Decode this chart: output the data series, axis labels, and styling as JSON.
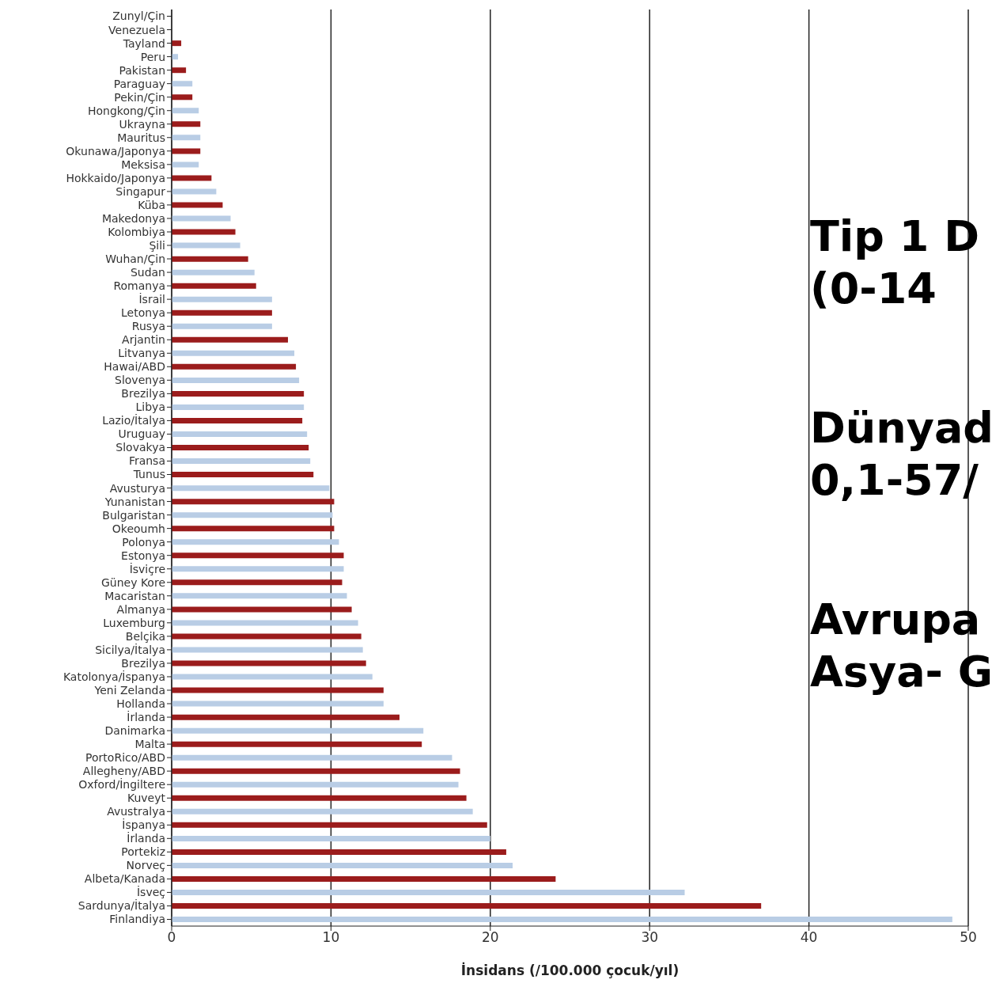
{
  "chart_data": {
    "type": "bar",
    "orientation": "horizontal",
    "xlabel": "İnsidans (/100.000 çocuk/yıl)",
    "categories": [
      "Zunyl/Çin",
      "Venezuela",
      "Tayland",
      "Peru",
      "Pakistan",
      "Paraguay",
      "Pekin/Çin",
      "Hongkong/Çin",
      "Ukrayna",
      "Mauritus",
      "Okunawa/Japonya",
      "Meksisa",
      "Hokkaido/Japonya",
      "Singapur",
      "Küba",
      "Makedonya",
      "Kolombiya",
      "Şili",
      "Wuhan/Çin",
      "Sudan",
      "Romanya",
      "İsrail",
      "Letonya",
      "Rusya",
      "Arjantin",
      "Litvanya",
      "Hawai/ABD",
      "Slovenya",
      "Brezilya",
      "Libya",
      "Lazio/İtalya",
      "Uruguay",
      "Slovakya",
      "Fransa",
      "Tunus",
      "Avusturya",
      "Yunanistan",
      "Bulgaristan",
      "Okeoumh",
      "Polonya",
      "Estonya",
      "İsviçre",
      "Güney Kore",
      "Macaristan",
      "Almanya",
      "Luxemburg",
      "Belçika",
      "Sicilya/İtalya",
      "Brezilya",
      "Katolonya/İspanya",
      "Yeni Zelanda",
      "Hollanda",
      "İrlanda",
      "Danimarka",
      "Malta",
      "PortoRico/ABD",
      "Allegheny/ABD",
      "Oxford/İngiltere",
      "Kuveyt",
      "Avustralya",
      "İspanya",
      "İrlanda",
      "Portekiz",
      "Norveç",
      "Albeta/Kanada",
      "İsveç",
      "Sardunya/İtalya",
      "Finlandiya"
    ],
    "values": [
      0,
      0,
      0.6,
      0.4,
      0.9,
      1.3,
      1.3,
      1.7,
      1.8,
      1.8,
      1.8,
      1.7,
      2.5,
      2.8,
      3.2,
      3.7,
      4.0,
      4.3,
      4.8,
      5.2,
      5.3,
      6.3,
      6.3,
      6.3,
      7.3,
      7.7,
      7.8,
      8.0,
      8.3,
      8.3,
      8.2,
      8.5,
      8.6,
      8.7,
      8.9,
      9.9,
      10.2,
      10.1,
      10.2,
      10.5,
      10.8,
      10.8,
      10.7,
      11.0,
      11.3,
      11.7,
      11.9,
      12.0,
      12.2,
      12.6,
      13.3,
      13.3,
      14.3,
      15.8,
      15.7,
      17.6,
      18.1,
      18.0,
      18.5,
      18.9,
      19.8,
      20.0,
      21.0,
      21.4,
      24.1,
      32.2,
      37.0,
      49.0
    ],
    "colors": [
      "#9b1c1c",
      "#b9cde5",
      "#9b1c1c",
      "#b9cde5",
      "#9b1c1c",
      "#b9cde5",
      "#9b1c1c",
      "#b9cde5",
      "#9b1c1c",
      "#b9cde5",
      "#9b1c1c",
      "#b9cde5",
      "#9b1c1c",
      "#b9cde5",
      "#9b1c1c",
      "#b9cde5",
      "#9b1c1c",
      "#b9cde5",
      "#9b1c1c",
      "#b9cde5",
      "#9b1c1c",
      "#b9cde5",
      "#9b1c1c",
      "#b9cde5",
      "#9b1c1c",
      "#b9cde5",
      "#9b1c1c",
      "#b9cde5",
      "#9b1c1c",
      "#b9cde5",
      "#9b1c1c",
      "#b9cde5",
      "#9b1c1c",
      "#b9cde5",
      "#9b1c1c",
      "#b9cde5",
      "#9b1c1c",
      "#b9cde5",
      "#9b1c1c",
      "#b9cde5",
      "#9b1c1c",
      "#b9cde5",
      "#9b1c1c",
      "#b9cde5",
      "#9b1c1c",
      "#b9cde5",
      "#9b1c1c",
      "#b9cde5",
      "#9b1c1c",
      "#b9cde5",
      "#9b1c1c",
      "#b9cde5",
      "#9b1c1c",
      "#b9cde5",
      "#9b1c1c",
      "#b9cde5",
      "#9b1c1c",
      "#b9cde5",
      "#9b1c1c",
      "#b9cde5",
      "#9b1c1c",
      "#b9cde5",
      "#9b1c1c",
      "#b9cde5",
      "#9b1c1c",
      "#b9cde5",
      "#9b1c1c",
      "#b9cde5"
    ],
    "xlim": [
      0,
      50
    ],
    "xticks": [
      0,
      10,
      20,
      30,
      40,
      50
    ],
    "grid": "x",
    "annotations": [
      "Tip 1 D",
      "(0-14",
      "Dünyad",
      "0,1-57/",
      "Avrupa",
      "Asya- G"
    ]
  }
}
